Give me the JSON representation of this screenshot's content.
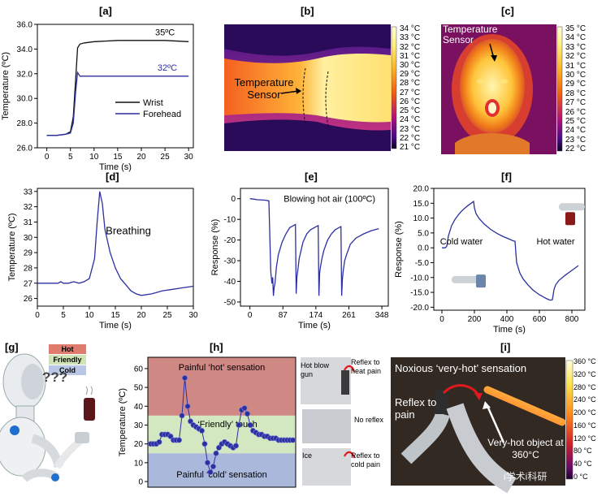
{
  "panels": {
    "a": "[a]",
    "b": "[b]",
    "c": "[c]",
    "d": "[d]",
    "e": "[e]",
    "f": "[f]",
    "g": "[g]",
    "h": "[h]",
    "i": "[i]"
  },
  "chart_data": [
    {
      "id": "a",
      "type": "line",
      "xlabel": "Time (s)",
      "ylabel": "Temperature (ºC)",
      "xlim": [
        -2,
        31
      ],
      "ylim": [
        26,
        36
      ],
      "xticks": [
        "0",
        "5",
        "10",
        "15",
        "20",
        "25",
        "30"
      ],
      "yticks": [
        "26.0",
        "28.0",
        "30.0",
        "32.0",
        "34.0",
        "36.0"
      ],
      "legend": [
        "Wrist",
        "Forehead"
      ],
      "legend_position": "center-right",
      "annotations": [
        "35ºC",
        "32ºC"
      ],
      "series": [
        {
          "name": "Wrist",
          "color": "#111111",
          "x": [
            0,
            2,
            4,
            5,
            5.6,
            6.1,
            6.5,
            7,
            8,
            10,
            15,
            20,
            25,
            30
          ],
          "y": [
            27.0,
            27.0,
            27.1,
            27.3,
            28.5,
            31.5,
            34.1,
            34.4,
            34.5,
            34.6,
            34.7,
            34.7,
            34.7,
            34.6
          ]
        },
        {
          "name": "Forehead",
          "color": "#2b2fa0",
          "x": [
            0,
            2,
            4,
            5,
            5.6,
            6.1,
            6.5,
            7,
            8,
            10,
            15,
            20,
            25,
            30
          ],
          "y": [
            27.0,
            27.0,
            27.1,
            27.2,
            28.0,
            30.5,
            32.1,
            31.8,
            31.8,
            31.8,
            31.8,
            31.8,
            31.8,
            31.8
          ]
        }
      ]
    },
    {
      "id": "d",
      "type": "line",
      "xlabel": "Time (s)",
      "ylabel": "Temperature (ºC)",
      "xlim": [
        0,
        30
      ],
      "ylim": [
        25.5,
        33.2
      ],
      "xticks": [
        "0",
        "5",
        "10",
        "15",
        "20",
        "25",
        "30"
      ],
      "yticks": [
        "26",
        "27",
        "28",
        "29",
        "30",
        "31",
        "32",
        "33"
      ],
      "annotation": "Breathing",
      "series": [
        {
          "name": "",
          "color": "#2b2fa0",
          "x": [
            0,
            4,
            4.5,
            5,
            6,
            7,
            8,
            9,
            10,
            11,
            11.5,
            12,
            12.5,
            13,
            14,
            15,
            16,
            17,
            18,
            19,
            20,
            22,
            24,
            26,
            28,
            30
          ],
          "y": [
            27.0,
            27.0,
            27.1,
            27.0,
            27.0,
            27.1,
            27.0,
            27.1,
            27.3,
            28.6,
            31.0,
            33.0,
            32.2,
            30.5,
            29.0,
            28.0,
            27.3,
            26.9,
            26.5,
            26.3,
            26.2,
            26.3,
            26.5,
            26.6,
            26.7,
            26.8
          ]
        }
      ]
    },
    {
      "id": "e",
      "type": "line",
      "xlabel": "Time (s)",
      "ylabel": "Response (%)",
      "xlim": [
        -25,
        365
      ],
      "ylim": [
        -52,
        5
      ],
      "xticks": [
        "0",
        "87",
        "174",
        "261",
        "348"
      ],
      "yticks": [
        "0",
        "-10",
        "-20",
        "-30",
        "-40",
        "-50"
      ],
      "annotation": "Blowing hot air (100ºC)",
      "series": [
        {
          "name": "",
          "color": "#2b2fa0",
          "x": [
            0,
            10,
            20,
            40,
            50,
            55,
            58,
            60,
            62,
            64,
            66,
            70,
            75,
            85,
            95,
            105,
            115,
            120,
            122,
            124,
            126,
            128,
            130,
            140,
            150,
            160,
            170,
            180,
            182,
            184,
            186,
            190,
            195,
            205,
            215,
            225,
            235,
            240,
            242,
            244,
            246,
            250,
            255,
            265,
            280,
            300,
            320,
            340
          ],
          "y": [
            0,
            -0.2,
            -0.5,
            -0.7,
            -1,
            -35,
            -41,
            -38,
            -47,
            -43,
            -41,
            -33,
            -27,
            -21,
            -17,
            -14,
            -13,
            -12.5,
            -46,
            -38,
            -35,
            -32,
            -29,
            -21,
            -17,
            -15,
            -14,
            -13,
            -47,
            -36,
            -33,
            -29,
            -25,
            -20,
            -17,
            -15,
            -14,
            -13.5,
            -47,
            -39,
            -35,
            -30,
            -27,
            -22,
            -19,
            -17,
            -15.5,
            -14.5
          ]
        }
      ]
    },
    {
      "id": "f",
      "type": "line",
      "xlabel": "Time (s)",
      "ylabel": "Response (%)",
      "xlim": [
        -50,
        880
      ],
      "ylim": [
        -21,
        20
      ],
      "xticks": [
        "0",
        "200",
        "400",
        "600",
        "800"
      ],
      "yticks": [
        "20.0",
        "15.0",
        "10.0",
        "5.0",
        "0.0",
        "-5.0",
        "-10.0",
        "-15.0",
        "-20.0"
      ],
      "annotations": [
        "Cold water",
        "Hot water"
      ],
      "series": [
        {
          "name": "",
          "color": "#2b2fa0",
          "x": [
            0,
            20,
            30,
            40,
            60,
            80,
            100,
            120,
            140,
            160,
            180,
            195,
            200,
            210,
            230,
            260,
            300,
            340,
            380,
            420,
            440,
            450,
            455,
            460,
            480,
            500,
            530,
            560,
            600,
            640,
            660,
            670,
            680,
            690,
            700,
            720,
            760,
            800,
            840
          ],
          "y": [
            0,
            0,
            0.5,
            4,
            7.5,
            9.5,
            11,
            12.3,
            13.3,
            14.2,
            15,
            15.6,
            13.5,
            11.5,
            9.8,
            8,
            6.2,
            4.8,
            3.7,
            2.8,
            2.3,
            2.2,
            -1.5,
            -5,
            -8.5,
            -10.5,
            -12.5,
            -14.2,
            -15.8,
            -17,
            -17.5,
            -17.6,
            -17.5,
            -14,
            -12.5,
            -11,
            -9.2,
            -7.6,
            -6
          ]
        }
      ]
    },
    {
      "id": "h",
      "type": "scatter",
      "ylabel": "Temperature (ºC)",
      "ylim": [
        -3,
        66
      ],
      "yticks": [
        "60",
        "50",
        "40",
        "30",
        "20",
        "10",
        "0"
      ],
      "bands": [
        {
          "label": "Painful ‘hot’ sensation",
          "color": "#d08884",
          "from": 35,
          "to": 66
        },
        {
          "label": "‘Friendly’ touch",
          "color": "#d3e8c0",
          "from": 15,
          "to": 35
        },
        {
          "label": "Painful ‘cold’ sensation",
          "color": "#aab8dc",
          "from": -3,
          "to": 15
        }
      ],
      "series": [
        {
          "name": "",
          "color": "#2b2fa0",
          "x": [
            0,
            1,
            2,
            3,
            4,
            5,
            6,
            7,
            8,
            9,
            10,
            11,
            12,
            13,
            14,
            15,
            16,
            17,
            18,
            19,
            20,
            21,
            22,
            23,
            24,
            25,
            26,
            27,
            28,
            29,
            30,
            31,
            32,
            33,
            34,
            35,
            36,
            37,
            38,
            39,
            40,
            41,
            42,
            43,
            44,
            45,
            46,
            47,
            48,
            49,
            50
          ],
          "y": [
            20,
            20,
            20,
            21,
            25,
            25,
            25,
            24,
            22,
            22,
            22,
            35,
            55,
            40,
            32,
            30,
            29,
            28,
            27,
            20,
            10,
            5,
            8,
            15,
            18,
            20,
            21,
            20,
            19,
            18,
            19,
            30,
            38,
            39,
            36,
            30,
            27,
            26,
            25,
            25,
            24,
            24,
            23,
            23,
            23,
            22,
            22,
            22,
            22,
            22,
            22
          ]
        }
      ]
    }
  ],
  "figures": {
    "b": {
      "label": "Temperature\nSensor",
      "colorbar": [
        "34 °C",
        "33 °C",
        "32 °C",
        "31 °C",
        "30 °C",
        "29 °C",
        "28 °C",
        "27 °C",
        "26 °C",
        "25 °C",
        "24 °C",
        "23 °C",
        "22 °C",
        "21 °C"
      ]
    },
    "c": {
      "label": "Temperature\nSensor",
      "colorbar": [
        "35 °C",
        "34 °C",
        "33 °C",
        "32 °C",
        "31 °C",
        "30 °C",
        "29 °C",
        "28 °C",
        "27 °C",
        "26 °C",
        "25 °C",
        "24 °C",
        "23 °C",
        "22 °C"
      ]
    },
    "g": {
      "legend": [
        "Hot",
        "Friendly",
        "Cold"
      ],
      "legend_colors": [
        "#e07c6e",
        "#cfe3b5",
        "#b9c6e6"
      ],
      "thought": "???"
    },
    "h_photos": {
      "top": [
        "Hot blow gun",
        "Reflex to heat pain"
      ],
      "middle": [
        "No reflex"
      ],
      "bottom": [
        "Ice",
        "Reflex to cold pain"
      ]
    },
    "i": {
      "title": "Noxious ‘very-hot’ sensation",
      "reflex": "Reflex to pain",
      "object": "Very-hot object at 360°C",
      "colorbar": [
        "360 °C",
        "320 °C",
        "280 °C",
        "240 °C",
        "200 °C",
        "160 °C",
        "120 °C",
        "80 °C",
        "40 °C",
        "0 °C"
      ],
      "watermark": "i学术i科研"
    }
  }
}
